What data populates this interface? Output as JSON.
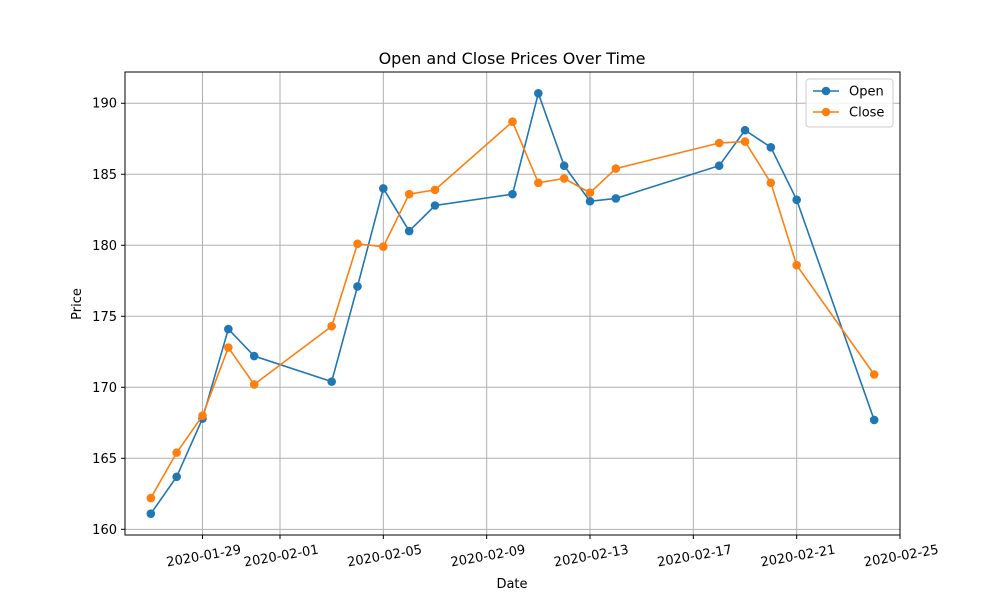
{
  "chart_data": {
    "type": "line",
    "title": "Open and Close Prices Over Time",
    "xlabel": "Date",
    "ylabel": "Price",
    "x": [
      "2020-01-27",
      "2020-01-28",
      "2020-01-29",
      "2020-01-30",
      "2020-01-31",
      "2020-02-03",
      "2020-02-04",
      "2020-02-05",
      "2020-02-06",
      "2020-02-07",
      "2020-02-10",
      "2020-02-11",
      "2020-02-12",
      "2020-02-13",
      "2020-02-14",
      "2020-02-18",
      "2020-02-19",
      "2020-02-20",
      "2020-02-21",
      "2020-02-24"
    ],
    "series": [
      {
        "name": "Open",
        "color": "#1f77b4",
        "values": [
          161.1,
          163.7,
          167.8,
          174.1,
          172.2,
          170.4,
          177.1,
          184.0,
          181.0,
          182.8,
          183.6,
          190.7,
          185.6,
          183.1,
          183.3,
          185.6,
          188.1,
          186.9,
          183.2,
          167.7
        ]
      },
      {
        "name": "Close",
        "color": "#ff7f0e",
        "values": [
          162.2,
          165.4,
          168.0,
          172.8,
          170.2,
          174.3,
          180.1,
          179.9,
          183.6,
          183.9,
          188.7,
          184.4,
          184.7,
          183.7,
          185.4,
          187.2,
          187.3,
          184.4,
          178.6,
          170.9
        ]
      }
    ],
    "xticks": [
      "2020-01-29",
      "2020-02-01",
      "2020-02-05",
      "2020-02-09",
      "2020-02-13",
      "2020-02-17",
      "2020-02-21",
      "2020-02-25"
    ],
    "yticks": [
      160,
      165,
      170,
      175,
      180,
      185,
      190
    ],
    "xlim": [
      "2020-01-26",
      "2020-02-25"
    ],
    "ylim": [
      159.6,
      192.2
    ],
    "grid": true,
    "legend": "top-right"
  }
}
